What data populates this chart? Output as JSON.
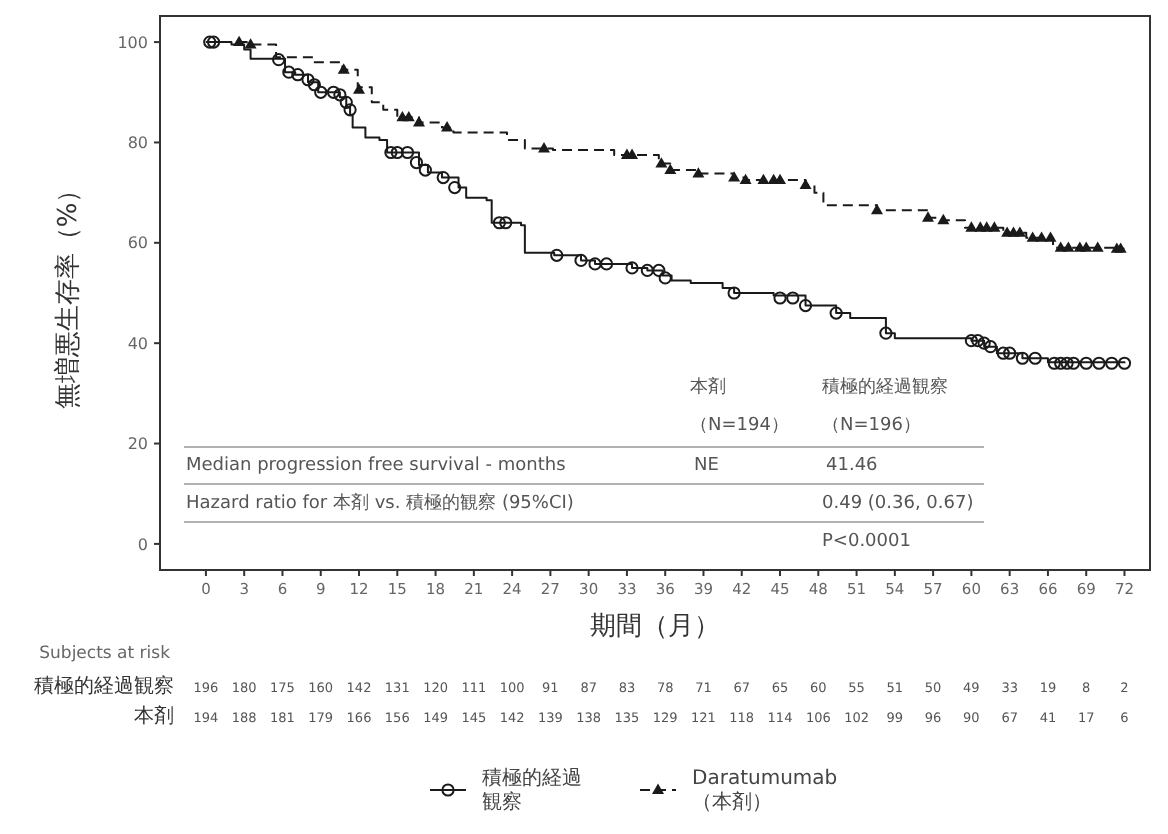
{
  "chart_data": {
    "type": "step",
    "xlabel": "期間（月）",
    "ylabel": "無増悪生存率（%）",
    "xlim": [
      -3.6,
      74
    ],
    "ylim": [
      -5.2,
      105.2
    ],
    "xticks": [
      0,
      3,
      6,
      9,
      12,
      15,
      18,
      21,
      24,
      27,
      30,
      33,
      36,
      39,
      42,
      45,
      48,
      51,
      54,
      57,
      60,
      63,
      66,
      69,
      72
    ],
    "yticks": [
      0,
      20,
      40,
      60,
      80,
      100
    ],
    "legend": "bottom",
    "series": [
      {
        "name": "積極的経過観察",
        "color": "#1a1a1a",
        "line_style": "solid",
        "x": [
          0,
          2,
          3,
          3.5,
          6.2,
          7,
          8,
          8.8,
          10.5,
          11,
          11.3,
          11.5,
          12.5,
          13.6,
          14.2,
          16.7,
          17.4,
          18.5,
          19.8,
          20.4,
          22,
          22.4,
          24.7,
          25,
          27.3,
          29.4,
          30.5,
          33.4,
          34.6,
          35.8,
          36.5,
          38,
          40.5,
          41.4,
          44.5,
          47,
          49.4,
          50.5,
          53.3,
          54,
          60,
          61,
          62,
          64,
          66,
          72
        ],
        "values": [
          100,
          99.5,
          98.5,
          96.7,
          94,
          93.5,
          92,
          90,
          89,
          87,
          85.5,
          83,
          81,
          80.5,
          78,
          75.5,
          74,
          73,
          71,
          69,
          68.5,
          64,
          63.5,
          58,
          57.5,
          56.5,
          55.8,
          55,
          54.5,
          53.5,
          52.5,
          52,
          51,
          50,
          49.5,
          47.5,
          46,
          45,
          42,
          41,
          40.5,
          39.3,
          38,
          37,
          36.2,
          36
        ]
      },
      {
        "type": "scatter",
        "marker": "circle",
        "color": "#1a1a1a",
        "x": [
          0.3,
          0.6,
          5.7,
          6.5,
          7.2,
          8,
          8.5,
          9,
          10,
          10.5,
          11,
          11.3,
          14.5,
          15,
          15.8,
          16.5,
          17.2,
          18.6,
          19.5,
          23,
          23.5,
          27.5,
          29.4,
          30.5,
          31.4,
          33.4,
          34.6,
          35.5,
          36,
          41.4,
          45,
          46,
          47,
          49.4,
          53.3,
          60,
          60.5,
          61,
          61.5,
          62.5,
          63,
          64,
          65,
          66.5,
          67,
          67.5,
          68,
          69,
          70,
          71,
          72
        ],
        "values": [
          100,
          100,
          96.5,
          94,
          93.5,
          92.5,
          91.5,
          90,
          90,
          89.5,
          88,
          86.5,
          78,
          78,
          78,
          76,
          74.5,
          73,
          71,
          64,
          64,
          57.5,
          56.5,
          55.8,
          55.8,
          55,
          54.5,
          54.5,
          53,
          50,
          49,
          49,
          47.5,
          46,
          42,
          40.5,
          40.5,
          40,
          39.3,
          38,
          38,
          37,
          37,
          36,
          36,
          36,
          36,
          36,
          36,
          36,
          36
        ]
      },
      {
        "name": "Daratumumab（本剤）",
        "color": "#1a1a1a",
        "line_style": "dashed",
        "x": [
          0,
          3.2,
          5.5,
          8.4,
          10.7,
          11.9,
          13,
          13.9,
          15,
          16.7,
          18.5,
          19.4,
          23.6,
          25,
          27.2,
          32,
          35.5,
          36.4,
          38.6,
          41.4,
          42.3,
          47,
          47.7,
          48.4,
          52.6,
          56.6,
          57.8,
          59.5,
          62.5,
          64.3,
          66.4,
          71.5,
          72
        ],
        "values": [
          100,
          99.5,
          97,
          96,
          94.5,
          91,
          88,
          86.5,
          85,
          84,
          83,
          82,
          80.5,
          78.8,
          78.5,
          77.5,
          75.8,
          74.5,
          73.8,
          73,
          72.5,
          71.5,
          70,
          67.5,
          66.5,
          65,
          64.5,
          63,
          62,
          61,
          59,
          58.8,
          58.8
        ]
      },
      {
        "type": "scatter",
        "marker": "triangle",
        "color": "#1a1a1a",
        "x": [
          2.6,
          3.5,
          10.8,
          12,
          15.4,
          15.9,
          16.7,
          18.9,
          26.5,
          33,
          33.4,
          35.7,
          36.4,
          38.6,
          41.4,
          42.3,
          43.7,
          44.5,
          45,
          47,
          52.6,
          56.6,
          57.8,
          60,
          60.7,
          61.2,
          61.8,
          62.8,
          63.3,
          63.8,
          64.8,
          65.5,
          66.2,
          67,
          67.6,
          68.5,
          69,
          69.9,
          71.4,
          71.7
        ],
        "values": [
          100,
          99.5,
          94.5,
          90.5,
          85,
          85,
          84,
          83,
          78.8,
          77.5,
          77.5,
          75.8,
          74.5,
          73.8,
          73,
          72.5,
          72.5,
          72.5,
          72.5,
          71.5,
          66.5,
          65,
          64.5,
          63,
          63,
          63,
          63,
          62,
          62,
          62,
          61,
          61,
          61,
          59,
          59,
          59,
          59,
          59,
          58.8,
          58.8
        ]
      }
    ],
    "annotations": [
      "本剤",
      "積極的経過観察",
      "（N=194）",
      "（N=196）",
      "Median progression free survival - months",
      "NE",
      "41.46",
      "Hazard ratio for 本剤 vs. 積極的観察 (95%CI)",
      "0.49 (0.36, 0.67)",
      "P<0.0001",
      "Subjects at risk",
      "積極的経過観察",
      "196 180 175 160 142 131 120 111 100 91 87 83 78 71 67 65 60 55 51 50 49 33 19 8 2",
      "本剤",
      "194 188 181 179 166 156 149 145 142 139 138 135 129 121 118 114 106 102 99 96 90 67 41 17 6"
    ]
  }
}
